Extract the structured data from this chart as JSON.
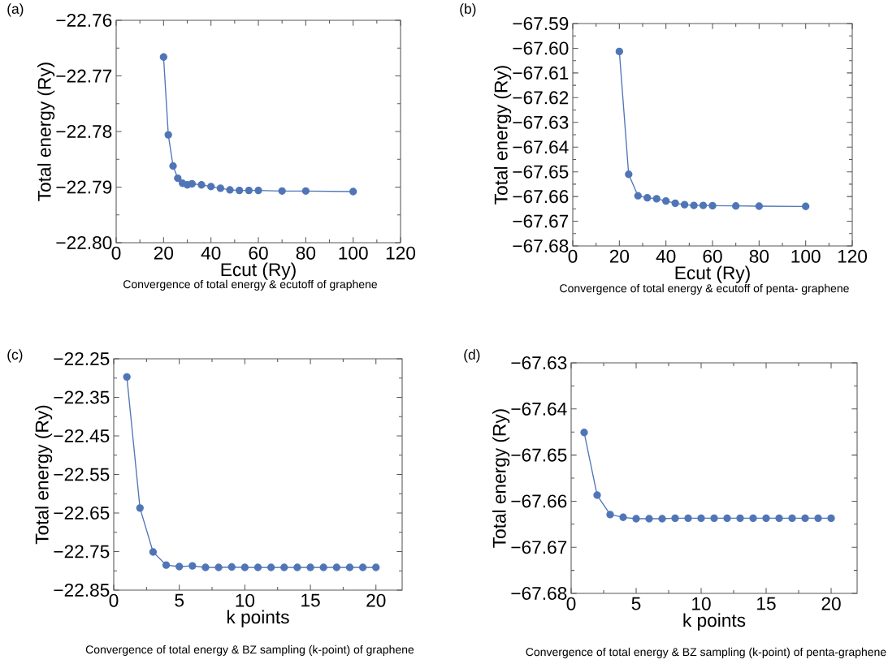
{
  "chart_data": [
    {
      "type": "line",
      "xlabel": "Ecut (Ry)",
      "ylabel": "Total energy (Ry)",
      "marker": "circle",
      "annotations": [
        "(a)",
        "Convergence of total energy & ecutoff of graphene"
      ],
      "xlim": [
        0,
        120
      ],
      "ylim": [
        -22.8,
        -22.76
      ],
      "xticks": [
        0,
        20,
        40,
        60,
        80,
        100,
        120
      ],
      "yticks": [
        {
          "value": -22.8,
          "label": "−22.80"
        },
        {
          "value": -22.79,
          "label": "−22.79"
        },
        {
          "value": -22.78,
          "label": "−22.78"
        },
        {
          "value": -22.77,
          "label": "−22.77"
        },
        {
          "value": -22.76,
          "label": "−22.76"
        }
      ],
      "x": [
        20,
        22,
        24,
        26,
        28,
        30,
        32,
        36,
        40,
        44,
        48,
        52,
        56,
        60,
        70,
        80,
        100
      ],
      "series": [
        {
          "color": "#4f75b7",
          "values": [
            -22.7666,
            -22.7806,
            -22.7862,
            -22.7884,
            -22.7893,
            -22.7896,
            -22.7894,
            -22.7896,
            -22.7899,
            -22.7902,
            -22.7905,
            -22.7906,
            -22.7906,
            -22.7906,
            -22.7907,
            -22.7907,
            -22.7908
          ]
        }
      ]
    },
    {
      "type": "line",
      "xlabel": "Ecut (Ry)",
      "ylabel": "Total energy (Ry)",
      "marker": "circle",
      "annotations": [
        "(b)",
        "Convergence of total energy & ecutoff of penta- graphene"
      ],
      "xlim": [
        0,
        120
      ],
      "ylim": [
        -67.68,
        -67.59
      ],
      "xticks": [
        0,
        20,
        40,
        60,
        80,
        100,
        120
      ],
      "yticks": [
        {
          "value": -67.68,
          "label": "−67.68"
        },
        {
          "value": -67.67,
          "label": "−67.67"
        },
        {
          "value": -67.66,
          "label": "−67.66"
        },
        {
          "value": -67.65,
          "label": "−67.65"
        },
        {
          "value": -67.64,
          "label": "−67.64"
        },
        {
          "value": -67.63,
          "label": "−67.63"
        },
        {
          "value": -67.62,
          "label": "−67.62"
        },
        {
          "value": -67.61,
          "label": "−67.61"
        },
        {
          "value": -67.6,
          "label": "−67.60"
        },
        {
          "value": -67.59,
          "label": "−67.59"
        }
      ],
      "x": [
        20,
        24,
        28,
        32,
        36,
        40,
        44,
        48,
        52,
        56,
        60,
        70,
        80,
        100
      ],
      "series": [
        {
          "color": "#4f75b7",
          "values": [
            -67.6013,
            -67.651,
            -67.6597,
            -67.6605,
            -67.6609,
            -67.6618,
            -67.6627,
            -67.6633,
            -67.6636,
            -67.6636,
            -67.6637,
            -67.6638,
            -67.6639,
            -67.664
          ]
        }
      ]
    },
    {
      "type": "line",
      "xlabel": "k points",
      "ylabel": "Total energy (Ry)",
      "marker": "circle",
      "annotations": [
        "(c)",
        "Convergence of total energy & BZ sampling (k-point) of graphene"
      ],
      "xlim": [
        0,
        22
      ],
      "ylim": [
        -22.85,
        -22.25
      ],
      "xticks": [
        0,
        5,
        10,
        15,
        20
      ],
      "yticks": [
        {
          "value": -22.85,
          "label": "−22.85"
        },
        {
          "value": -22.75,
          "label": "−22.75"
        },
        {
          "value": -22.65,
          "label": "−22.65"
        },
        {
          "value": -22.55,
          "label": "−22.55"
        },
        {
          "value": -22.45,
          "label": "−22.45"
        },
        {
          "value": -22.35,
          "label": "−22.35"
        },
        {
          "value": -22.25,
          "label": "−22.25"
        }
      ],
      "x": [
        1,
        2,
        3,
        4,
        5,
        6,
        7,
        8,
        9,
        10,
        11,
        12,
        13,
        14,
        15,
        16,
        17,
        18,
        19,
        20
      ],
      "series": [
        {
          "color": "#4f75b7",
          "values": [
            -22.297,
            -22.637,
            -22.751,
            -22.785,
            -22.789,
            -22.787,
            -22.791,
            -22.791,
            -22.79,
            -22.791,
            -22.791,
            -22.791,
            -22.791,
            -22.791,
            -22.791,
            -22.791,
            -22.791,
            -22.791,
            -22.791,
            -22.791
          ]
        }
      ]
    },
    {
      "type": "line",
      "xlabel": "k points",
      "ylabel": "Total energy (Ry)",
      "marker": "circle",
      "annotations": [
        "(d)",
        "Convergence of total energy & BZ sampling (k-point) of penta-graphene"
      ],
      "xlim": [
        0,
        22
      ],
      "ylim": [
        -67.68,
        -67.63
      ],
      "xticks": [
        0,
        5,
        10,
        15,
        20
      ],
      "yticks": [
        {
          "value": -67.68,
          "label": "−67.68"
        },
        {
          "value": -67.67,
          "label": "−67.67"
        },
        {
          "value": -67.66,
          "label": "−67.66"
        },
        {
          "value": -67.65,
          "label": "−67.65"
        },
        {
          "value": -67.64,
          "label": "−67.64"
        },
        {
          "value": -67.63,
          "label": "−67.63"
        }
      ],
      "x": [
        1,
        2,
        3,
        4,
        5,
        6,
        7,
        8,
        9,
        10,
        11,
        12,
        13,
        14,
        15,
        16,
        17,
        18,
        19,
        20
      ],
      "series": [
        {
          "color": "#4f75b7",
          "values": [
            -67.6451,
            -67.6587,
            -67.6629,
            -67.6635,
            -67.6638,
            -67.6638,
            -67.6638,
            -67.6637,
            -67.6637,
            -67.6637,
            -67.6637,
            -67.6637,
            -67.6637,
            -67.6637,
            -67.6637,
            -67.6637,
            -67.6637,
            -67.6637,
            -67.6637,
            -67.6637
          ]
        }
      ]
    }
  ]
}
